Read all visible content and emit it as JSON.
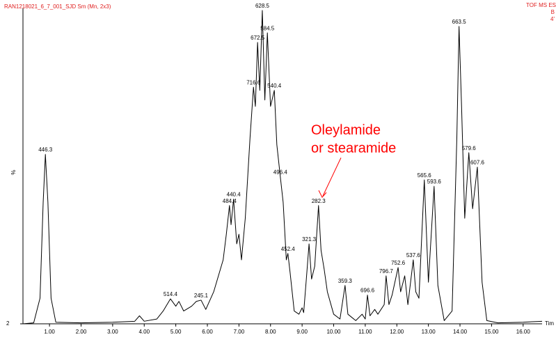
{
  "chart_data": {
    "type": "line",
    "title": "RAN1218021_6_7_001_SJD Sm (Mn, 2x3)",
    "header_right": [
      "TOF MS ES",
      "B",
      "4'"
    ],
    "ylabel": "%",
    "xlabel": "Tim",
    "annotation": [
      "Oleylamide",
      "or stearamide"
    ],
    "color": "#000000",
    "xlim": [
      0.16,
      16.6
    ],
    "ylim": [
      2,
      100
    ],
    "yticks": [
      2
    ],
    "xticks": [
      {
        "value": 1,
        "label": "1.00"
      },
      {
        "value": 2,
        "label": "2.00"
      },
      {
        "value": 3,
        "label": "3.00"
      },
      {
        "value": 4,
        "label": "4.00"
      },
      {
        "value": 5,
        "label": "5.00"
      },
      {
        "value": 6,
        "label": "6.00"
      },
      {
        "value": 7,
        "label": "7.00"
      },
      {
        "value": 8,
        "label": "8.00"
      },
      {
        "value": 9,
        "label": "9.00"
      },
      {
        "value": 10,
        "label": "10.00"
      },
      {
        "value": 11,
        "label": "11.00"
      },
      {
        "value": 12,
        "label": "12.00"
      },
      {
        "value": 13,
        "label": "13.00"
      },
      {
        "value": 14,
        "label": "14.00"
      },
      {
        "value": 15,
        "label": "15.00"
      },
      {
        "value": 16,
        "label": "16.00"
      }
    ],
    "x": [
      0.16,
      0.5,
      0.7,
      0.8,
      0.87,
      0.95,
      1.05,
      1.2,
      2.0,
      3.0,
      3.7,
      3.85,
      4.0,
      4.4,
      4.6,
      4.83,
      5.0,
      5.1,
      5.25,
      5.5,
      5.65,
      5.8,
      5.95,
      6.2,
      6.5,
      6.6,
      6.7,
      6.75,
      6.83,
      6.93,
      7.0,
      7.08,
      7.2,
      7.35,
      7.46,
      7.52,
      7.59,
      7.66,
      7.74,
      7.82,
      7.9,
      8.0,
      8.12,
      8.2,
      8.31,
      8.4,
      8.5,
      8.55,
      8.62,
      8.75,
      8.9,
      9.0,
      9.05,
      9.15,
      9.22,
      9.3,
      9.4,
      9.52,
      9.6,
      9.7,
      9.8,
      10.0,
      10.2,
      10.36,
      10.45,
      10.7,
      10.9,
      11.0,
      11.07,
      11.15,
      11.3,
      11.4,
      11.6,
      11.66,
      11.75,
      11.85,
      12.04,
      12.12,
      12.25,
      12.35,
      12.52,
      12.6,
      12.7,
      12.87,
      13.0,
      13.18,
      13.3,
      13.5,
      13.75,
      13.9,
      13.97,
      14.05,
      14.15,
      14.28,
      14.4,
      14.55,
      14.7,
      14.85,
      15.2,
      16.0,
      16.6
    ],
    "values": [
      2,
      2.3,
      10,
      40,
      55,
      40,
      10,
      2.5,
      2.3,
      2.5,
      2.8,
      4.5,
      2.8,
      3.5,
      6,
      9.8,
      7.5,
      9,
      6,
      7.5,
      9,
      9.4,
      6.5,
      12,
      22,
      30,
      39,
      33,
      41,
      27,
      30,
      22,
      35,
      60,
      76,
      70,
      90,
      75,
      100,
      72,
      93,
      70,
      75,
      58,
      48,
      40,
      22,
      24,
      18,
      6,
      5,
      7,
      5.5,
      18,
      27,
      16,
      20,
      39,
      25,
      19,
      12,
      5,
      3.5,
      14,
      5,
      3,
      5,
      3.5,
      11,
      4.5,
      6.5,
      5,
      8,
      17,
      8,
      11,
      19.6,
      12,
      17,
      8,
      22,
      12,
      10,
      47,
      15,
      45,
      14,
      3,
      6,
      60,
      95,
      70,
      35,
      55.5,
      38,
      51,
      15,
      3,
      2.3,
      2.5,
      2.8
    ],
    "peaks": [
      {
        "label": "446.3",
        "x": 0.87,
        "y": 55
      },
      {
        "label": "514.4",
        "x": 4.83,
        "y": 9.8
      },
      {
        "label": "245.1",
        "x": 5.8,
        "y": 9.4
      },
      {
        "label": "484.4",
        "x": 6.7,
        "y": 39
      },
      {
        "label": "440.4",
        "x": 6.83,
        "y": 41
      },
      {
        "label": "716.6",
        "x": 7.46,
        "y": 76
      },
      {
        "label": "672.5",
        "x": 7.59,
        "y": 90
      },
      {
        "label": "628.5",
        "x": 7.74,
        "y": 100
      },
      {
        "label": "584.5",
        "x": 7.9,
        "y": 93
      },
      {
        "label": "540.4",
        "x": 8.12,
        "y": 75
      },
      {
        "label": "496.4",
        "x": 8.31,
        "y": 48
      },
      {
        "label": "452.4",
        "x": 8.55,
        "y": 24
      },
      {
        "label": "321.3",
        "x": 9.22,
        "y": 27
      },
      {
        "label": "282.3",
        "x": 9.52,
        "y": 39
      },
      {
        "label": "359.3",
        "x": 10.36,
        "y": 14
      },
      {
        "label": "696.6",
        "x": 11.07,
        "y": 11
      },
      {
        "label": "796.7",
        "x": 11.66,
        "y": 17
      },
      {
        "label": "752.6",
        "x": 12.04,
        "y": 19.6
      },
      {
        "label": "537.6",
        "x": 12.52,
        "y": 22
      },
      {
        "label": "565.6",
        "x": 12.87,
        "y": 47
      },
      {
        "label": "593.6",
        "x": 13.18,
        "y": 45
      },
      {
        "label": "663.5",
        "x": 13.97,
        "y": 95
      },
      {
        "label": "579.6",
        "x": 14.28,
        "y": 55.5
      },
      {
        "label": "607.6",
        "x": 14.55,
        "y": 51
      }
    ]
  }
}
